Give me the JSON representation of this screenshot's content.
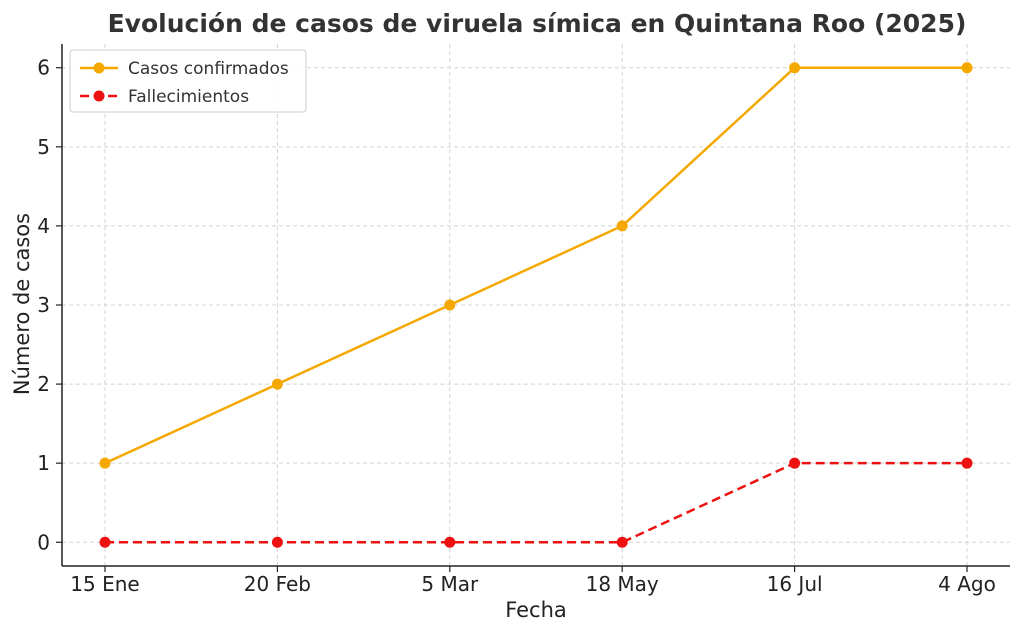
{
  "chart_data": {
    "type": "line",
    "title": "Evolución de casos de viruela símica en Quintana Roo (2025)",
    "xlabel": "Fecha",
    "ylabel": "Número de casos",
    "categories": [
      "15 Ene",
      "20 Feb",
      "5 Mar",
      "18 May",
      "16 Jul",
      "4 Ago"
    ],
    "ylim": [
      -0.3,
      6.3
    ],
    "yticks": [
      0,
      1,
      2,
      3,
      4,
      5,
      6
    ],
    "grid": true,
    "legend_position": "top-left",
    "series": [
      {
        "name": "Casos confirmados",
        "values": [
          1,
          2,
          3,
          4,
          6,
          6
        ],
        "color": "#f5a800",
        "dashed": false
      },
      {
        "name": "Fallecimientos",
        "values": [
          0,
          0,
          0,
          0,
          1,
          1
        ],
        "color": "#ee1111",
        "dashed": true
      }
    ]
  }
}
